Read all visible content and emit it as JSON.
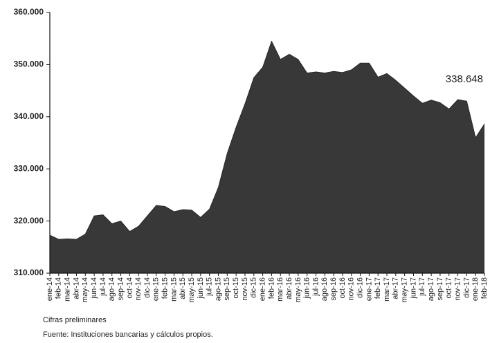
{
  "chart_data": {
    "type": "area",
    "categories": [
      "ene-14",
      "feb-14",
      "mar-14",
      "abr-14",
      "may-14",
      "jun-14",
      "jul-14",
      "ago-14",
      "sep-14",
      "oct-14",
      "nov-14",
      "dic-14",
      "ene-15",
      "feb-15",
      "mar-15",
      "abr-15",
      "may-15",
      "jun-15",
      "jul-15",
      "ago-15",
      "sep-15",
      "oct-15",
      "nov-15",
      "dic-15",
      "ene-16",
      "feb-16",
      "mar-16",
      "abr-16",
      "may-16",
      "jun-16",
      "jul-16",
      "ago-16",
      "sep-16",
      "oct-16",
      "nov-16",
      "dic-16",
      "ene-17",
      "feb-17",
      "mar-17",
      "abr-17",
      "may-17",
      "jun-17",
      "jul-17",
      "ago-17",
      "sep-17",
      "oct-17",
      "nov-17",
      "dic-17",
      "ene-18",
      "feb-18"
    ],
    "values": [
      317300,
      316500,
      316600,
      316500,
      317500,
      321000,
      321200,
      319500,
      320000,
      318000,
      319000,
      321000,
      323000,
      322800,
      321800,
      322200,
      322100,
      320700,
      322300,
      326500,
      333000,
      338000,
      342500,
      347500,
      349500,
      354500,
      351000,
      352000,
      351000,
      348400,
      348600,
      348400,
      348700,
      348500,
      349000,
      350300,
      350300,
      347600,
      348300,
      347000,
      345500,
      344000,
      342600,
      343200,
      342700,
      341500,
      343300,
      343000,
      336000,
      338648
    ],
    "value_labels": {
      "49": "338.648"
    },
    "color": "#3a3a3a",
    "ylim": [
      310000,
      360000
    ],
    "yticks": [
      {
        "value": 310000,
        "label": "310.000"
      },
      {
        "value": 320000,
        "label": "320.000"
      },
      {
        "value": 330000,
        "label": "330.000"
      },
      {
        "value": 340000,
        "label": "340.000"
      },
      {
        "value": 350000,
        "label": "350.000"
      },
      {
        "value": 360000,
        "label": "360.000"
      }
    ],
    "notes": [
      "Cifras preliminares",
      "Fuente: Instituciones bancarias y cálculos propios."
    ]
  }
}
